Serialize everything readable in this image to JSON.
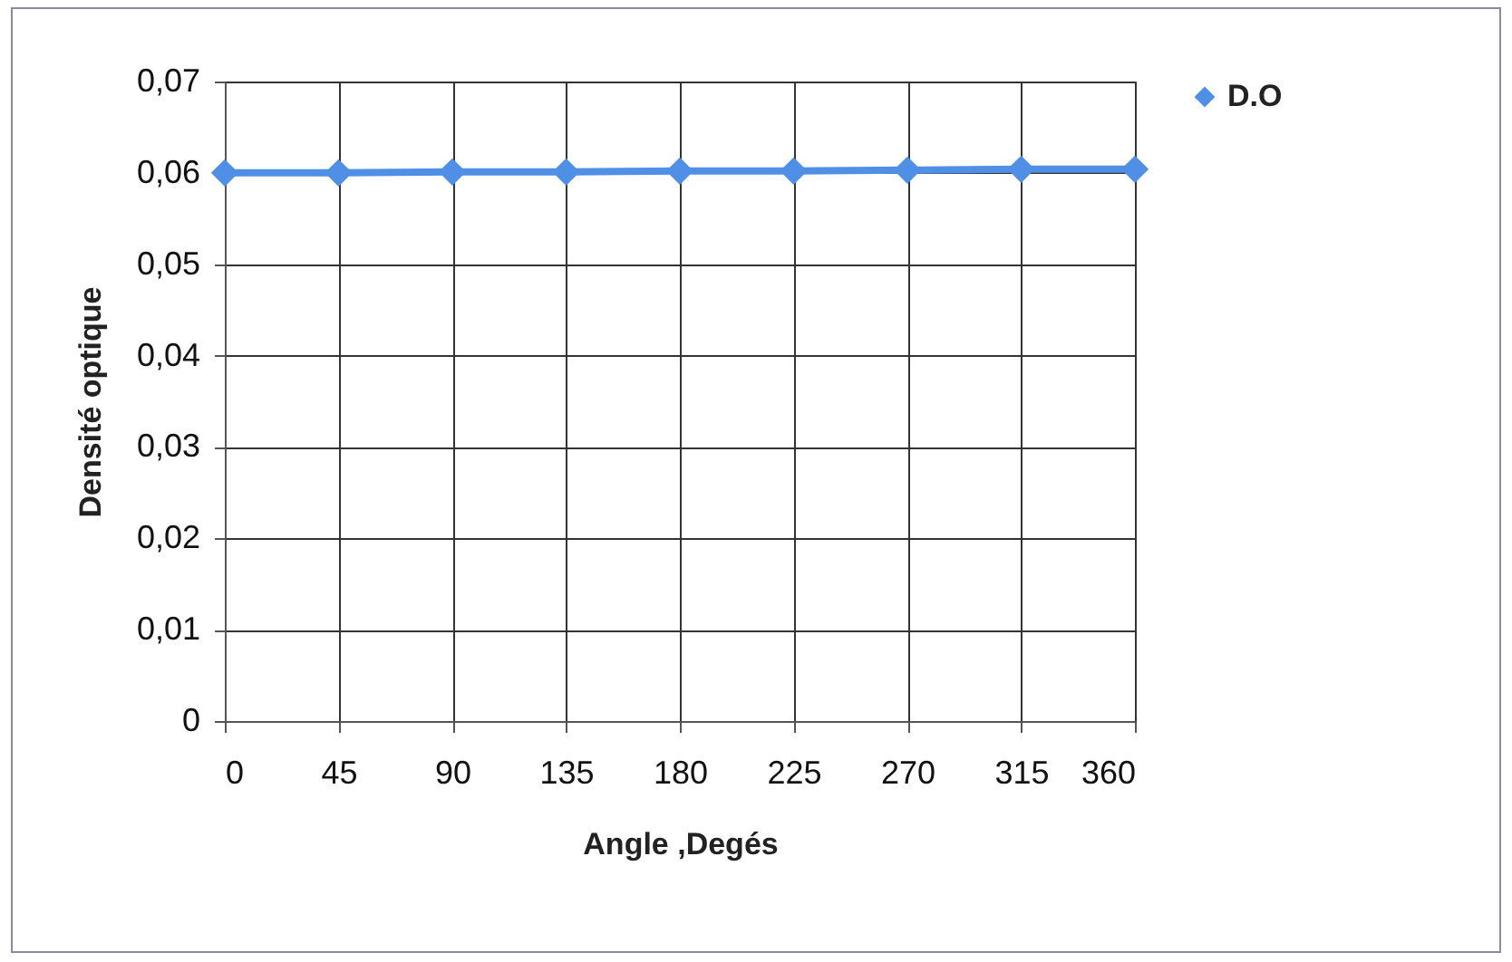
{
  "chart_data": {
    "type": "line",
    "xlabel": "Angle ,Degés",
    "ylabel": "Densité optique",
    "x": [
      0,
      45,
      90,
      135,
      180,
      225,
      270,
      315,
      360
    ],
    "series": [
      {
        "name": "D.O",
        "color": "#4f8fe6",
        "values": [
          0.06,
          0.06,
          0.0601,
          0.0601,
          0.0602,
          0.0602,
          0.0603,
          0.0604,
          0.0604
        ]
      }
    ],
    "xlim": [
      0,
      360
    ],
    "xticks": [
      0,
      45,
      90,
      135,
      180,
      225,
      270,
      315,
      360
    ],
    "ylim": [
      0,
      0.07
    ],
    "yticks": [
      {
        "value": 0,
        "label": "0"
      },
      {
        "value": 0.01,
        "label": "0,01"
      },
      {
        "value": 0.02,
        "label": "0,02"
      },
      {
        "value": 0.03,
        "label": "0,03"
      },
      {
        "value": 0.04,
        "label": "0,04"
      },
      {
        "value": 0.05,
        "label": "0,05"
      },
      {
        "value": 0.06,
        "label": "0,06"
      },
      {
        "value": 0.07,
        "label": "0,07"
      }
    ],
    "grid": true,
    "legend": "right",
    "marker": "diamond",
    "line_style": "solid"
  }
}
